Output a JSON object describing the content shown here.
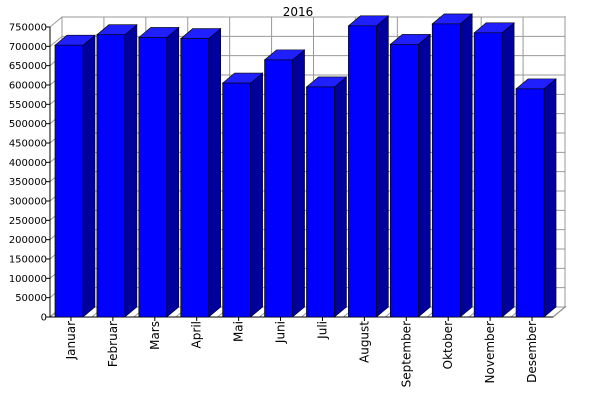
{
  "chart_data": {
    "type": "bar",
    "title": "2016",
    "xlabel": "",
    "ylabel": "",
    "categories": [
      "Januar",
      "Februar",
      "Mars",
      "April",
      "Mai",
      "Juni",
      "Juli",
      "August",
      "September",
      "Oktober",
      "November",
      "Desember"
    ],
    "values": [
      703000,
      730000,
      723000,
      720000,
      605000,
      665000,
      595000,
      753000,
      705000,
      758000,
      735000,
      590000
    ],
    "ylim": [
      0,
      750000
    ],
    "yticks": [
      "0",
      "50000",
      "100000",
      "150000",
      "200000",
      "250000",
      "300000",
      "350000",
      "400000",
      "450000",
      "500000",
      "550000",
      "600000",
      "650000",
      "700000",
      "750000"
    ],
    "grid": true,
    "legend": "none",
    "bar_color": "#0000ff",
    "bar_side_color": "#00009c",
    "bar_top_color": "#2020ff",
    "grid_color": "#999999",
    "plot_background": "#ffffff"
  }
}
